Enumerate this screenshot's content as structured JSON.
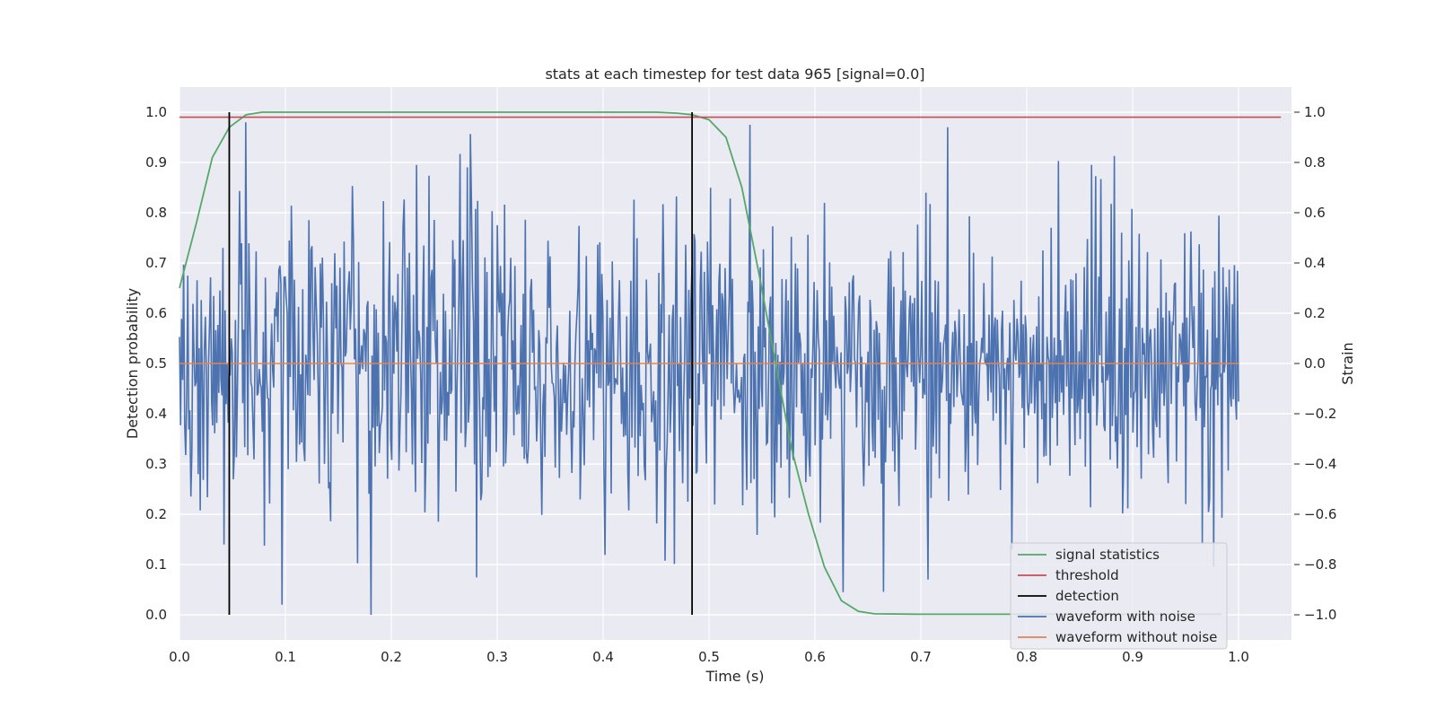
{
  "chart_data": {
    "type": "line",
    "title": "stats at each timestep for test data 965 [signal=0.0]",
    "xlabel": "Time (s)",
    "ylabel_left": "Detection probability",
    "ylabel_right": "Strain",
    "xlim": [
      0.0,
      1.05
    ],
    "ylim_left": [
      -0.05,
      1.05
    ],
    "ylim_right": [
      -1.1,
      1.1
    ],
    "xticks": [
      "0.0",
      "0.1",
      "0.2",
      "0.3",
      "0.4",
      "0.5",
      "0.6",
      "0.7",
      "0.8",
      "0.9",
      "1.0"
    ],
    "yticks_left": [
      "0.0",
      "0.1",
      "0.2",
      "0.3",
      "0.4",
      "0.5",
      "0.6",
      "0.7",
      "0.8",
      "0.9",
      "1.0"
    ],
    "yticks_right": [
      "−1.0",
      "−0.8",
      "−0.6",
      "−0.4",
      "−0.2",
      "0.0",
      "0.2",
      "0.4",
      "0.6",
      "0.8",
      "1.0"
    ],
    "grid": true,
    "legend_position": "lower-right",
    "legend": [
      {
        "name": "signal statistics",
        "color": "#55a868"
      },
      {
        "name": "threshold",
        "color": "#c44e52"
      },
      {
        "name": "detection",
        "color": "#000000"
      },
      {
        "name": "waveform with noise",
        "color": "#4c72b0"
      },
      {
        "name": "waveform without noise",
        "color": "#dd8452"
      }
    ],
    "signal_statistics": {
      "x": [
        0.0,
        0.016,
        0.031,
        0.047,
        0.063,
        0.078,
        0.094,
        0.2,
        0.3,
        0.4,
        0.45,
        0.47,
        0.484,
        0.5,
        0.516,
        0.531,
        0.547,
        0.563,
        0.578,
        0.594,
        0.609,
        0.625,
        0.641,
        0.656,
        0.7,
        0.8,
        0.9,
        0.984
      ],
      "y": [
        0.65,
        0.78,
        0.91,
        0.97,
        0.995,
        1.0,
        1.0,
        1.0,
        1.0,
        1.0,
        1.0,
        0.998,
        0.995,
        0.985,
        0.95,
        0.85,
        0.68,
        0.5,
        0.33,
        0.2,
        0.095,
        0.028,
        0.007,
        0.002,
        0.001,
        0.001,
        0.001,
        0.001
      ]
    },
    "threshold": {
      "y": 0.99,
      "x": [
        0.0,
        1.04
      ]
    },
    "detections": [
      0.047,
      0.484
    ],
    "waveform_without_noise": {
      "x": [
        0.0,
        1.0
      ],
      "y": [
        0.0,
        0.0
      ]
    },
    "waveform_with_noise": {
      "x_start": 0.0,
      "x_end": 1.0,
      "n": 1024,
      "seed": 965,
      "std": 0.3,
      "notable_points": [
        {
          "x": 0.063,
          "y": 0.96
        },
        {
          "x": 0.097,
          "y": -0.96
        },
        {
          "x": 0.181,
          "y": -1.0
        },
        {
          "x": 0.224,
          "y": 0.79
        },
        {
          "x": 0.627,
          "y": -0.91
        },
        {
          "x": 0.707,
          "y": -0.86
        },
        {
          "x": 0.725,
          "y": 0.94
        },
        {
          "x": 0.966,
          "y": -0.72
        },
        {
          "x": 0.861,
          "y": 0.79
        }
      ]
    }
  }
}
